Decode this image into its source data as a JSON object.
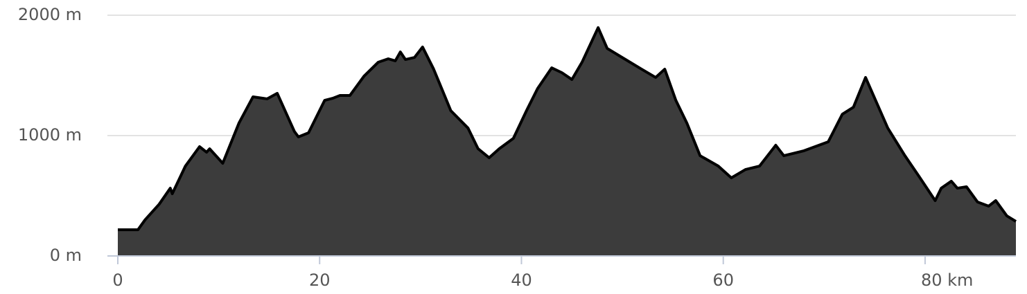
{
  "chart_data": {
    "type": "area",
    "x": [
      0,
      2,
      2.7,
      4.1,
      5.2,
      5.4,
      6.7,
      8.1,
      8.8,
      9.1,
      10.4,
      12.0,
      13.4,
      14.8,
      15.8,
      17.5,
      17.9,
      18.9,
      20.5,
      21.3,
      22.0,
      23.0,
      24.4,
      25.8,
      26.8,
      27.5,
      28.0,
      28.5,
      29.4,
      30.2,
      31.3,
      33.0,
      34.7,
      35.7,
      36.8,
      37.8,
      39.2,
      40.5,
      41.6,
      43.0,
      44.0,
      45.0,
      46.0,
      47.6,
      48.5,
      50.2,
      51.9,
      53.3,
      54.2,
      55.3,
      56.4,
      57.7,
      59.5,
      60.8,
      62.2,
      63.6,
      65.2,
      66.0,
      68.0,
      70.4,
      71.8,
      72.9,
      74.1,
      76.3,
      78.0,
      79.4,
      81.0,
      81.6,
      82.6,
      83.2,
      84.1,
      85.2,
      86.3,
      87.0,
      88.1,
      89.0
    ],
    "values": [
      218,
      218,
      300,
      430,
      563,
      517,
      747,
      908,
      862,
      890,
      770,
      1103,
      1322,
      1305,
      1351,
      1034,
      989,
      1023,
      1293,
      1310,
      1333,
      1333,
      1494,
      1609,
      1638,
      1621,
      1695,
      1632,
      1649,
      1736,
      1552,
      1207,
      1063,
      891,
      816,
      891,
      977,
      1207,
      1391,
      1563,
      1523,
      1466,
      1609,
      1897,
      1724,
      1638,
      1552,
      1483,
      1552,
      1293,
      1103,
      833,
      747,
      649,
      718,
      747,
      920,
      833,
      874,
      948,
      1178,
      1236,
      1483,
      1063,
      833,
      661,
      460,
      563,
      621,
      563,
      575,
      448,
      414,
      460,
      333,
      287
    ],
    "color": "#3c3c3c",
    "line_color": "#000000",
    "xlim": [
      0,
      89
    ],
    "ylim": [
      0,
      2000
    ],
    "xticks": [
      0,
      20,
      40,
      60,
      {
        "value": 80,
        "label": "80 km"
      }
    ],
    "yticks": [
      {
        "value": 0,
        "label": "0 m"
      },
      {
        "value": 1000,
        "label": "1000 m"
      },
      {
        "value": 2000,
        "label": "2000 m"
      }
    ],
    "grid": true
  }
}
